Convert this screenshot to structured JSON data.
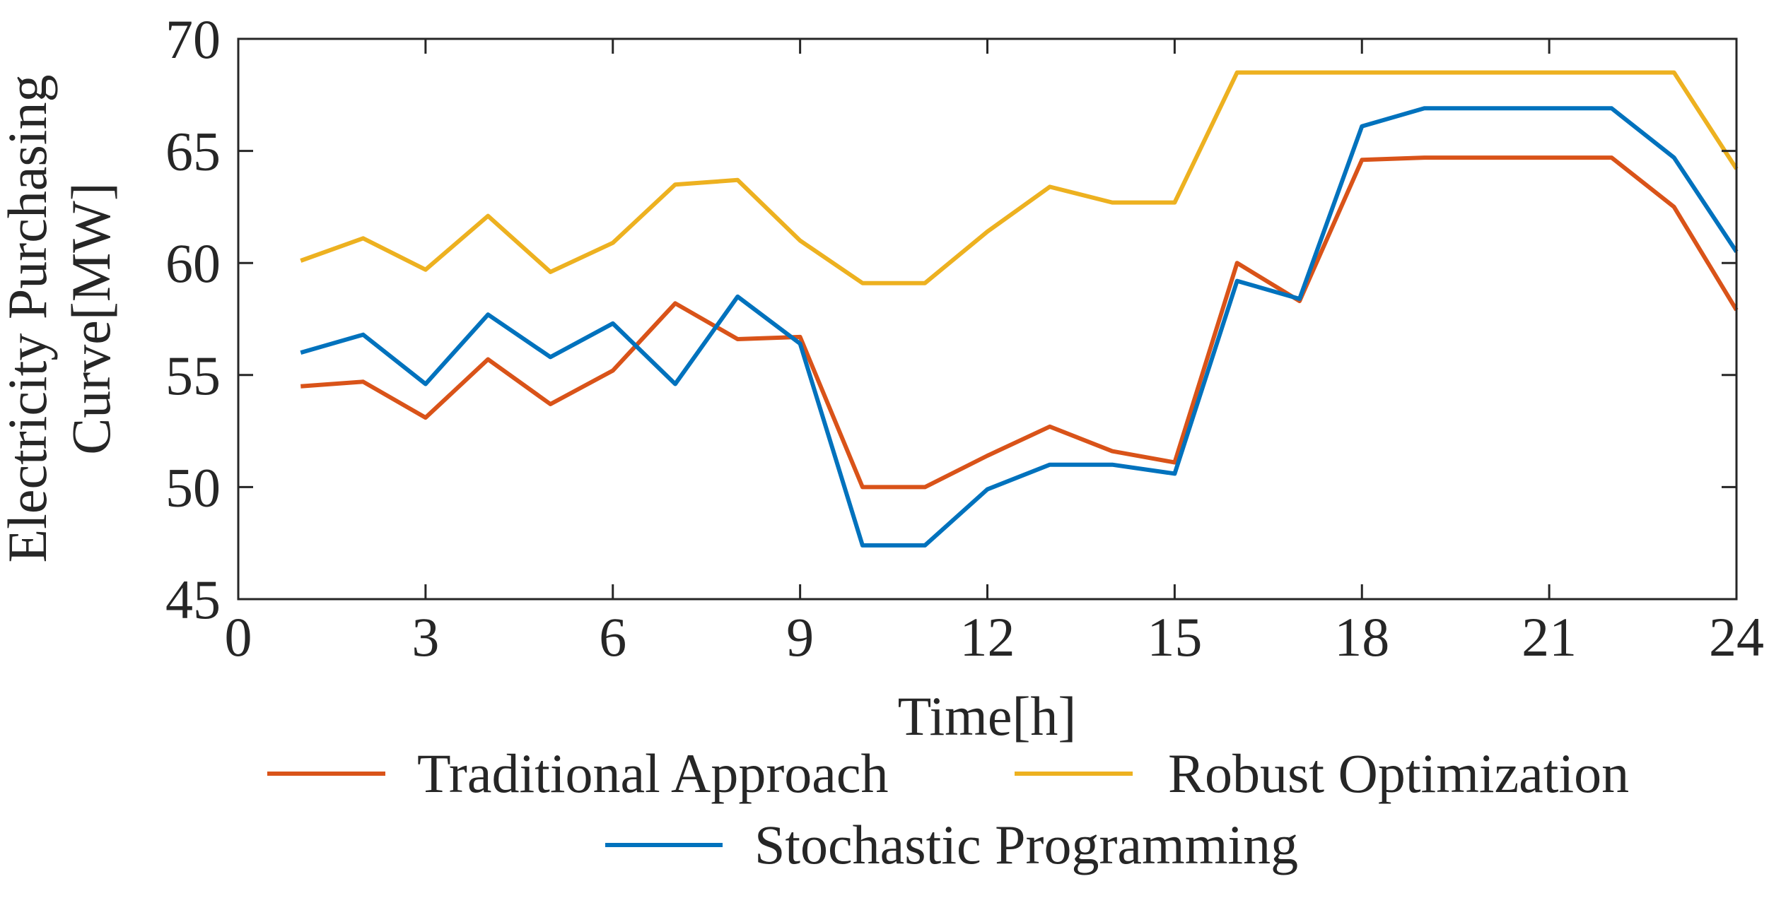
{
  "chart_data": {
    "type": "line",
    "title": "",
    "xlabel": "Time[h]",
    "ylabel_lines": [
      "Electricity Purchasing",
      "Curve[MW]"
    ],
    "xlim": [
      0,
      24
    ],
    "ylim": [
      45,
      70
    ],
    "xticks": [
      0,
      3,
      6,
      9,
      12,
      15,
      18,
      21,
      24
    ],
    "yticks": [
      45,
      50,
      55,
      60,
      65,
      70
    ],
    "xtick_labels": [
      "0",
      "3",
      "6",
      "9",
      "12",
      "15",
      "18",
      "21",
      "24"
    ],
    "ytick_labels": [
      "45",
      "50",
      "55",
      "60",
      "65",
      "70"
    ],
    "grid": false,
    "legend_position": "bottom",
    "x": [
      1,
      2,
      3,
      4,
      5,
      6,
      7,
      8,
      9,
      10,
      11,
      12,
      13,
      14,
      15,
      16,
      17,
      18,
      19,
      20,
      21,
      22,
      23,
      24
    ],
    "series": [
      {
        "name": "Traditional Approach",
        "color": "#D95319",
        "values": [
          54.5,
          54.7,
          53.1,
          55.7,
          53.7,
          55.2,
          58.2,
          56.6,
          56.7,
          50.0,
          50.0,
          51.4,
          52.7,
          51.6,
          51.1,
          60.0,
          58.3,
          64.6,
          64.7,
          64.7,
          64.7,
          64.7,
          62.5,
          57.9
        ]
      },
      {
        "name": "Robust Optimization",
        "color": "#EDB120",
        "values": [
          60.1,
          61.1,
          59.7,
          62.1,
          59.6,
          60.9,
          63.5,
          63.7,
          61.0,
          59.1,
          59.1,
          61.4,
          63.4,
          62.7,
          62.7,
          68.5,
          68.5,
          68.5,
          68.5,
          68.5,
          68.5,
          68.5,
          68.5,
          64.2
        ]
      },
      {
        "name": "Stochastic Programming",
        "color": "#0072BD",
        "values": [
          56.0,
          56.8,
          54.6,
          57.7,
          55.8,
          57.3,
          54.6,
          58.5,
          56.4,
          47.4,
          47.4,
          49.9,
          51.0,
          51.0,
          50.6,
          59.2,
          58.4,
          66.1,
          66.9,
          66.9,
          66.9,
          66.9,
          64.7,
          60.5
        ]
      }
    ]
  }
}
